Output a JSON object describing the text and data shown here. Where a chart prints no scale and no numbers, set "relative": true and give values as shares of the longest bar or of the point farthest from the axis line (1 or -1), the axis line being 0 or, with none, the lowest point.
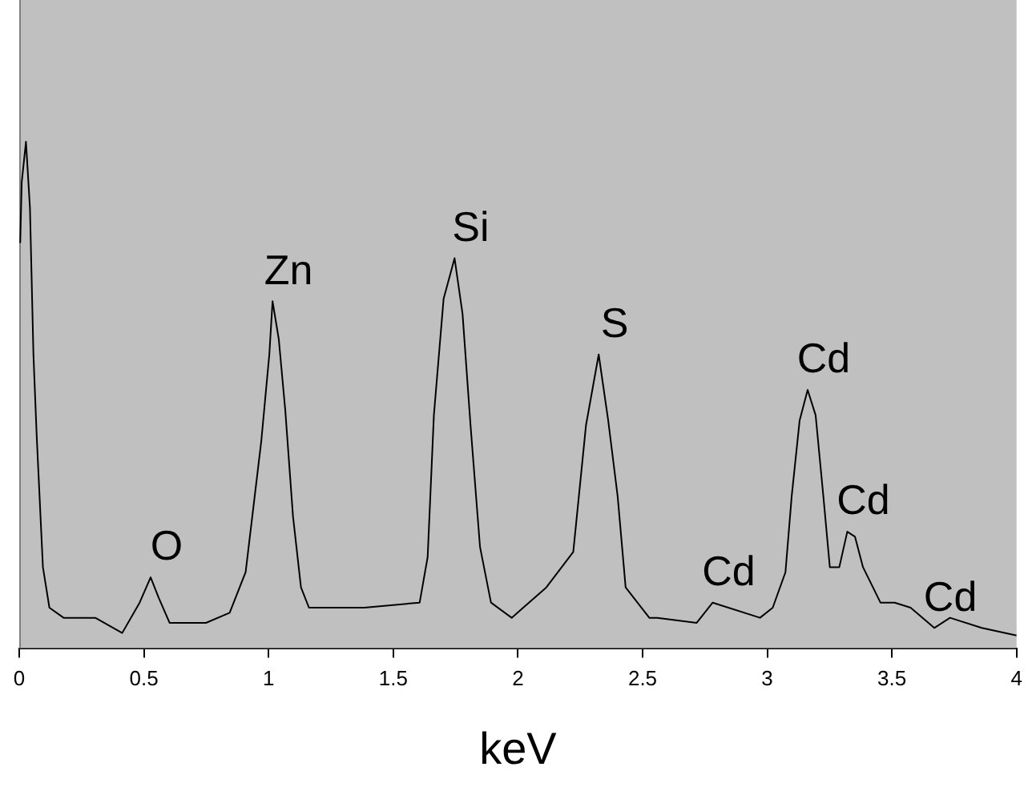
{
  "chart_data": {
    "type": "line",
    "relative": true,
    "xlabel": "keV",
    "xlim": [
      0,
      4
    ],
    "xticks": [
      0,
      0.5,
      1,
      1.5,
      2,
      2.5,
      3,
      3.5,
      4
    ],
    "grid": false,
    "legend": false,
    "marker": "none",
    "line_style": "solid",
    "series": [
      {
        "color": "#000000",
        "x": [
          0.004,
          0.01,
          0.027,
          0.043,
          0.057,
          0.07,
          0.095,
          0.121,
          0.178,
          0.305,
          0.413,
          0.483,
          0.527,
          0.559,
          0.603,
          0.749,
          0.844,
          0.908,
          0.971,
          1.003,
          1.016,
          1.041,
          1.067,
          1.098,
          1.13,
          1.162,
          1.384,
          1.606,
          1.638,
          1.663,
          1.702,
          1.746,
          1.778,
          1.81,
          1.848,
          1.892,
          1.975,
          2.114,
          2.222,
          2.273,
          2.324,
          2.362,
          2.4,
          2.432,
          2.527,
          2.559,
          2.717,
          2.781,
          2.971,
          3.022,
          3.073,
          3.098,
          3.13,
          3.162,
          3.194,
          3.225,
          3.251,
          3.289,
          3.321,
          3.352,
          3.384,
          3.454,
          3.511,
          3.575,
          3.67,
          3.733,
          3.86,
          4.0
        ],
        "values": [
          0.8,
          0.92,
          1.0,
          0.87,
          0.58,
          0.42,
          0.16,
          0.08,
          0.06,
          0.06,
          0.03,
          0.09,
          0.14,
          0.1,
          0.05,
          0.05,
          0.07,
          0.15,
          0.41,
          0.58,
          0.685,
          0.61,
          0.47,
          0.26,
          0.12,
          0.08,
          0.08,
          0.09,
          0.18,
          0.46,
          0.69,
          0.77,
          0.66,
          0.44,
          0.2,
          0.09,
          0.06,
          0.12,
          0.19,
          0.44,
          0.58,
          0.45,
          0.3,
          0.12,
          0.06,
          0.06,
          0.05,
          0.09,
          0.06,
          0.08,
          0.15,
          0.3,
          0.45,
          0.51,
          0.46,
          0.3,
          0.16,
          0.16,
          0.23,
          0.22,
          0.16,
          0.09,
          0.09,
          0.08,
          0.04,
          0.06,
          0.04,
          0.025
        ]
      }
    ],
    "annotations": [
      {
        "text": "O",
        "x": 0.527,
        "y": 0.14
      },
      {
        "text": "Zn",
        "x": 1.016,
        "y": 0.685
      },
      {
        "text": "Si",
        "x": 1.746,
        "y": 0.77
      },
      {
        "text": "S",
        "x": 2.324,
        "y": 0.58
      },
      {
        "text": "Cd",
        "x": 3.162,
        "y": 0.51
      },
      {
        "text": "Cd",
        "x": 2.781,
        "y": 0.09
      },
      {
        "text": "Cd",
        "x": 3.321,
        "y": 0.23
      },
      {
        "text": "Cd",
        "x": 3.67,
        "y": 0.04
      }
    ]
  }
}
